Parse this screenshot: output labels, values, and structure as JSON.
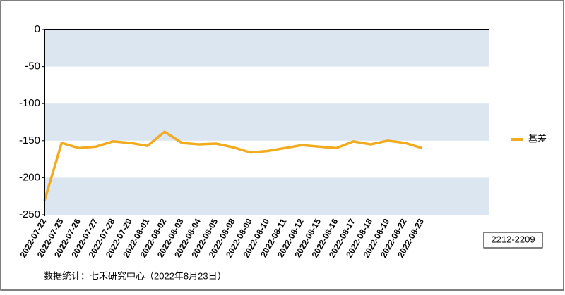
{
  "chart_data": {
    "type": "line",
    "categories": [
      "2022-07-22",
      "2022-07-25",
      "2022-07-26",
      "2022-07-27",
      "2022-07-28",
      "2022-07-29",
      "2022-08-01",
      "2022-08-02",
      "2022-08-03",
      "2022-08-04",
      "2022-08-05",
      "2022-08-08",
      "2022-08-09",
      "2022-08-10",
      "2022-08-11",
      "2022-08-12",
      "2022-08-15",
      "2022-08-16",
      "2022-08-17",
      "2022-08-18",
      "2022-08-19",
      "2022-08-22",
      "2022-08-23"
    ],
    "series": [
      {
        "name": "基差",
        "color": "#f0ab1e",
        "values": [
          -231,
          -153,
          -160,
          -158,
          -151,
          -153,
          -157,
          -138,
          -153,
          -155,
          -154,
          -159,
          -166,
          -164,
          -160,
          -156,
          -158,
          -160,
          -151,
          -155,
          -150,
          -153,
          -160
        ]
      }
    ],
    "ylim": [
      -250,
      0
    ],
    "yticks": [
      0,
      -50,
      -100,
      -150,
      -200,
      -250
    ],
    "band_color": "#dce6f0",
    "legend": "right",
    "annotation": "2212-2209",
    "footer": "数据统计：七禾研究中心（2022年8月23日）"
  }
}
